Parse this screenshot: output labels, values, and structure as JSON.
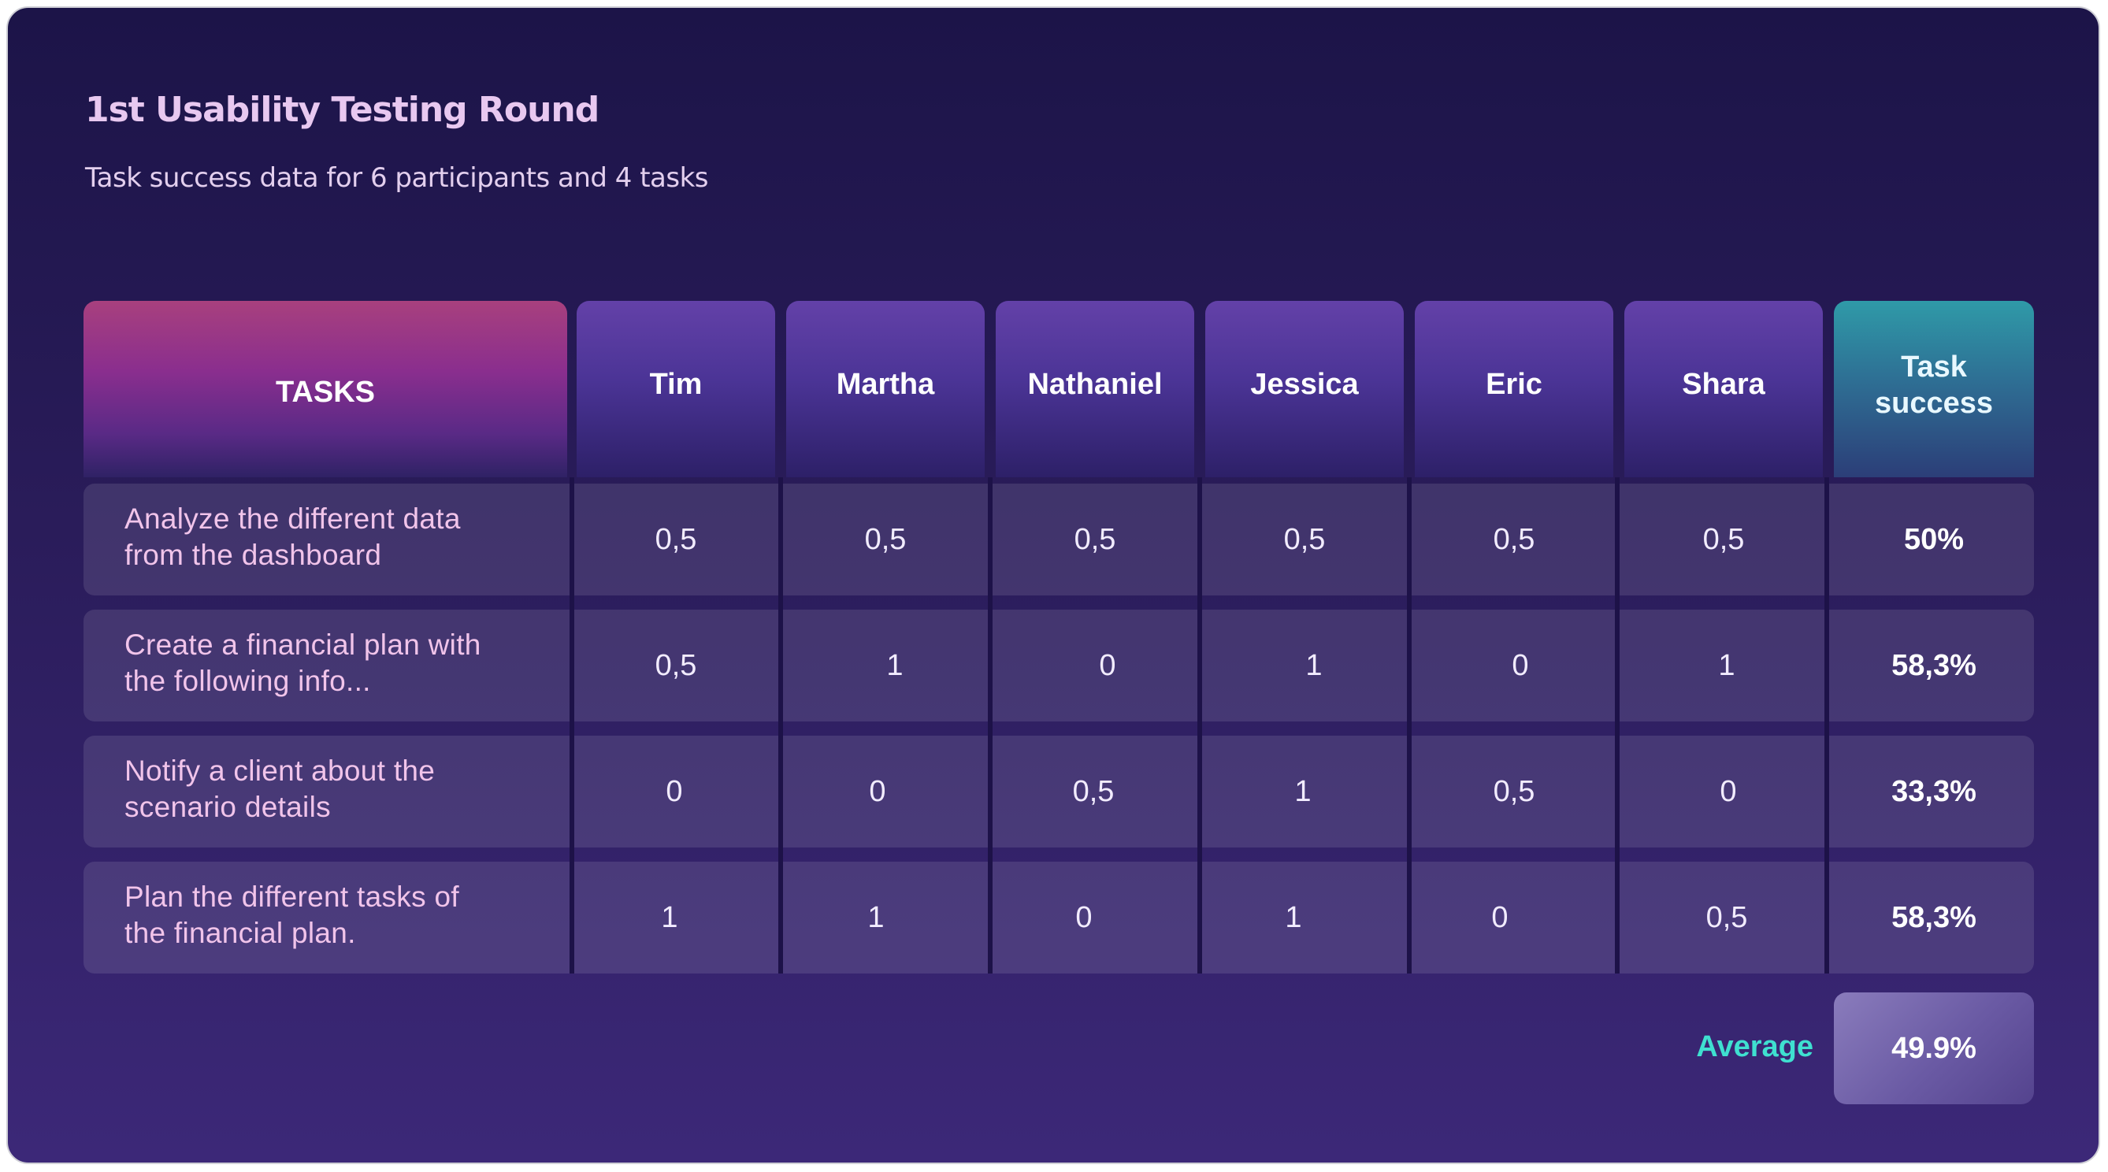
{
  "title": "1st Usability Testing Round",
  "subtitle": "Task success data for 6 participants and 4 tasks",
  "header": {
    "tasks": "TASKS",
    "participants": [
      "Tim",
      "Martha",
      "Nathaniel",
      "Jessica",
      "Eric",
      "Shara"
    ],
    "success_line1": "Task",
    "success_line2": "success"
  },
  "rows": [
    {
      "task_line1": "Analyze the different data",
      "task_line2": "from the dashboard",
      "values": [
        "0,5",
        "0,5",
        "0,5",
        "0,5",
        "0,5",
        "0,5"
      ],
      "success": "50%"
    },
    {
      "task_line1": "Create a financial plan with",
      "task_line2": "the following info...",
      "values": [
        "0,5",
        "1",
        "0",
        "1",
        "0",
        "1"
      ],
      "success": "58,3%"
    },
    {
      "task_line1": "Notify a client about the",
      "task_line2": "scenario details",
      "values": [
        "0",
        "0",
        "0,5",
        "1",
        "0,5",
        "0"
      ],
      "success": "33,3%"
    },
    {
      "task_line1": "Plan the different tasks of",
      "task_line2": "the financial plan.",
      "values": [
        "1",
        "1",
        "0",
        "1",
        "0",
        "0,5"
      ],
      "success": "58,3%"
    }
  ],
  "average": {
    "label": "Average",
    "value": "49.9%"
  },
  "colors": {
    "tasks_header": "#a8407e",
    "participant_header": "#6341a8",
    "success_header": "#2f9aa8",
    "average_label": "#3fe0d0",
    "task_text": "#f1c4ea"
  }
}
